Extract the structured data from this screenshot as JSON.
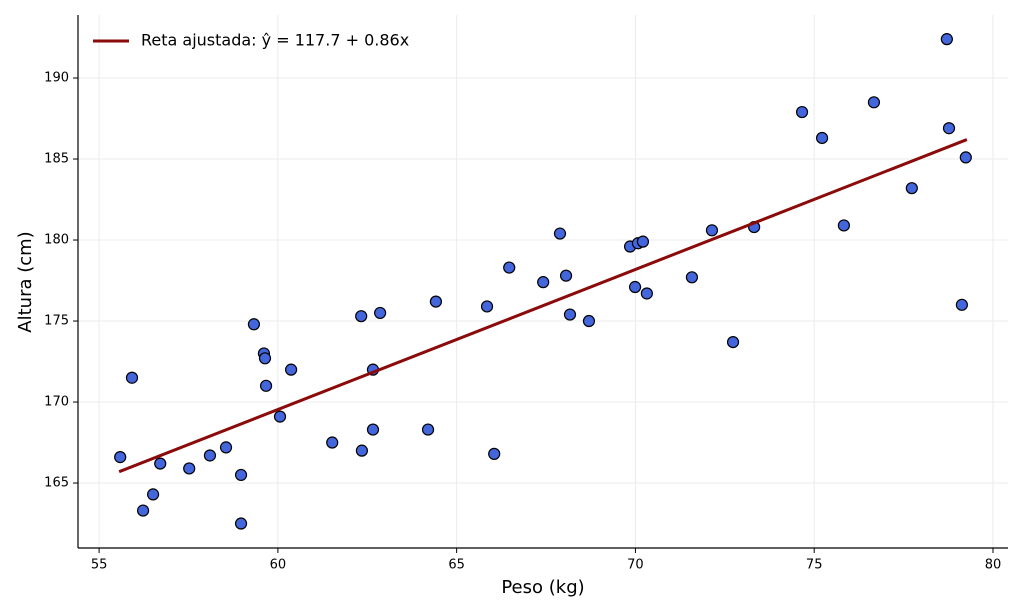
{
  "chart_data": {
    "type": "scatter",
    "x_label": "Peso (kg)",
    "y_label": "Altura (cm)",
    "xlim": [
      54.41,
      80.42
    ],
    "ylim": [
      160.99,
      193.89
    ],
    "xticks": [
      55,
      60,
      65,
      70,
      75,
      80
    ],
    "yticks": [
      165,
      170,
      175,
      180,
      185,
      190
    ],
    "grid": true,
    "legend": "upper left",
    "series": [
      {
        "type": "scatter",
        "color": "#4466dd",
        "x": [
          55.59,
          55.92,
          56.23,
          56.51,
          56.71,
          57.52,
          58.1,
          58.55,
          58.97,
          58.97,
          59.33,
          59.61,
          59.64,
          59.67,
          60.06,
          60.37,
          61.52,
          62.33,
          62.35,
          62.66,
          62.66,
          62.86,
          64.2,
          64.42,
          65.85,
          66.05,
          66.47,
          67.42,
          67.89,
          68.06,
          68.17,
          68.7,
          69.85,
          70.07,
          70.21,
          69.99,
          70.32,
          71.58,
          72.14,
          72.73,
          73.32,
          74.66,
          75.22,
          75.83,
          76.67,
          77.73,
          78.71,
          78.77,
          79.13,
          79.24
        ],
        "values": [
          166.6,
          171.5,
          163.3,
          164.3,
          166.2,
          165.9,
          166.7,
          167.2,
          165.5,
          162.5,
          174.8,
          173.0,
          172.7,
          171.0,
          169.1,
          172.0,
          167.5,
          175.3,
          167.0,
          172.0,
          168.3,
          175.5,
          168.3,
          176.2,
          175.9,
          166.8,
          178.3,
          177.4,
          180.4,
          177.8,
          175.4,
          175.0,
          179.6,
          179.8,
          179.9,
          177.1,
          176.7,
          177.7,
          180.6,
          173.7,
          180.8,
          187.9,
          186.3,
          180.9,
          188.5,
          183.2,
          192.4,
          186.9,
          176.0,
          185.1
        ]
      },
      {
        "type": "line",
        "name": "Reta ajustada: ŷ = 117.7 + 0.86x",
        "color": "#8b0a0a",
        "x": [
          55.56,
          79.27
        ],
        "values": [
          165.7,
          186.2
        ]
      }
    ]
  }
}
